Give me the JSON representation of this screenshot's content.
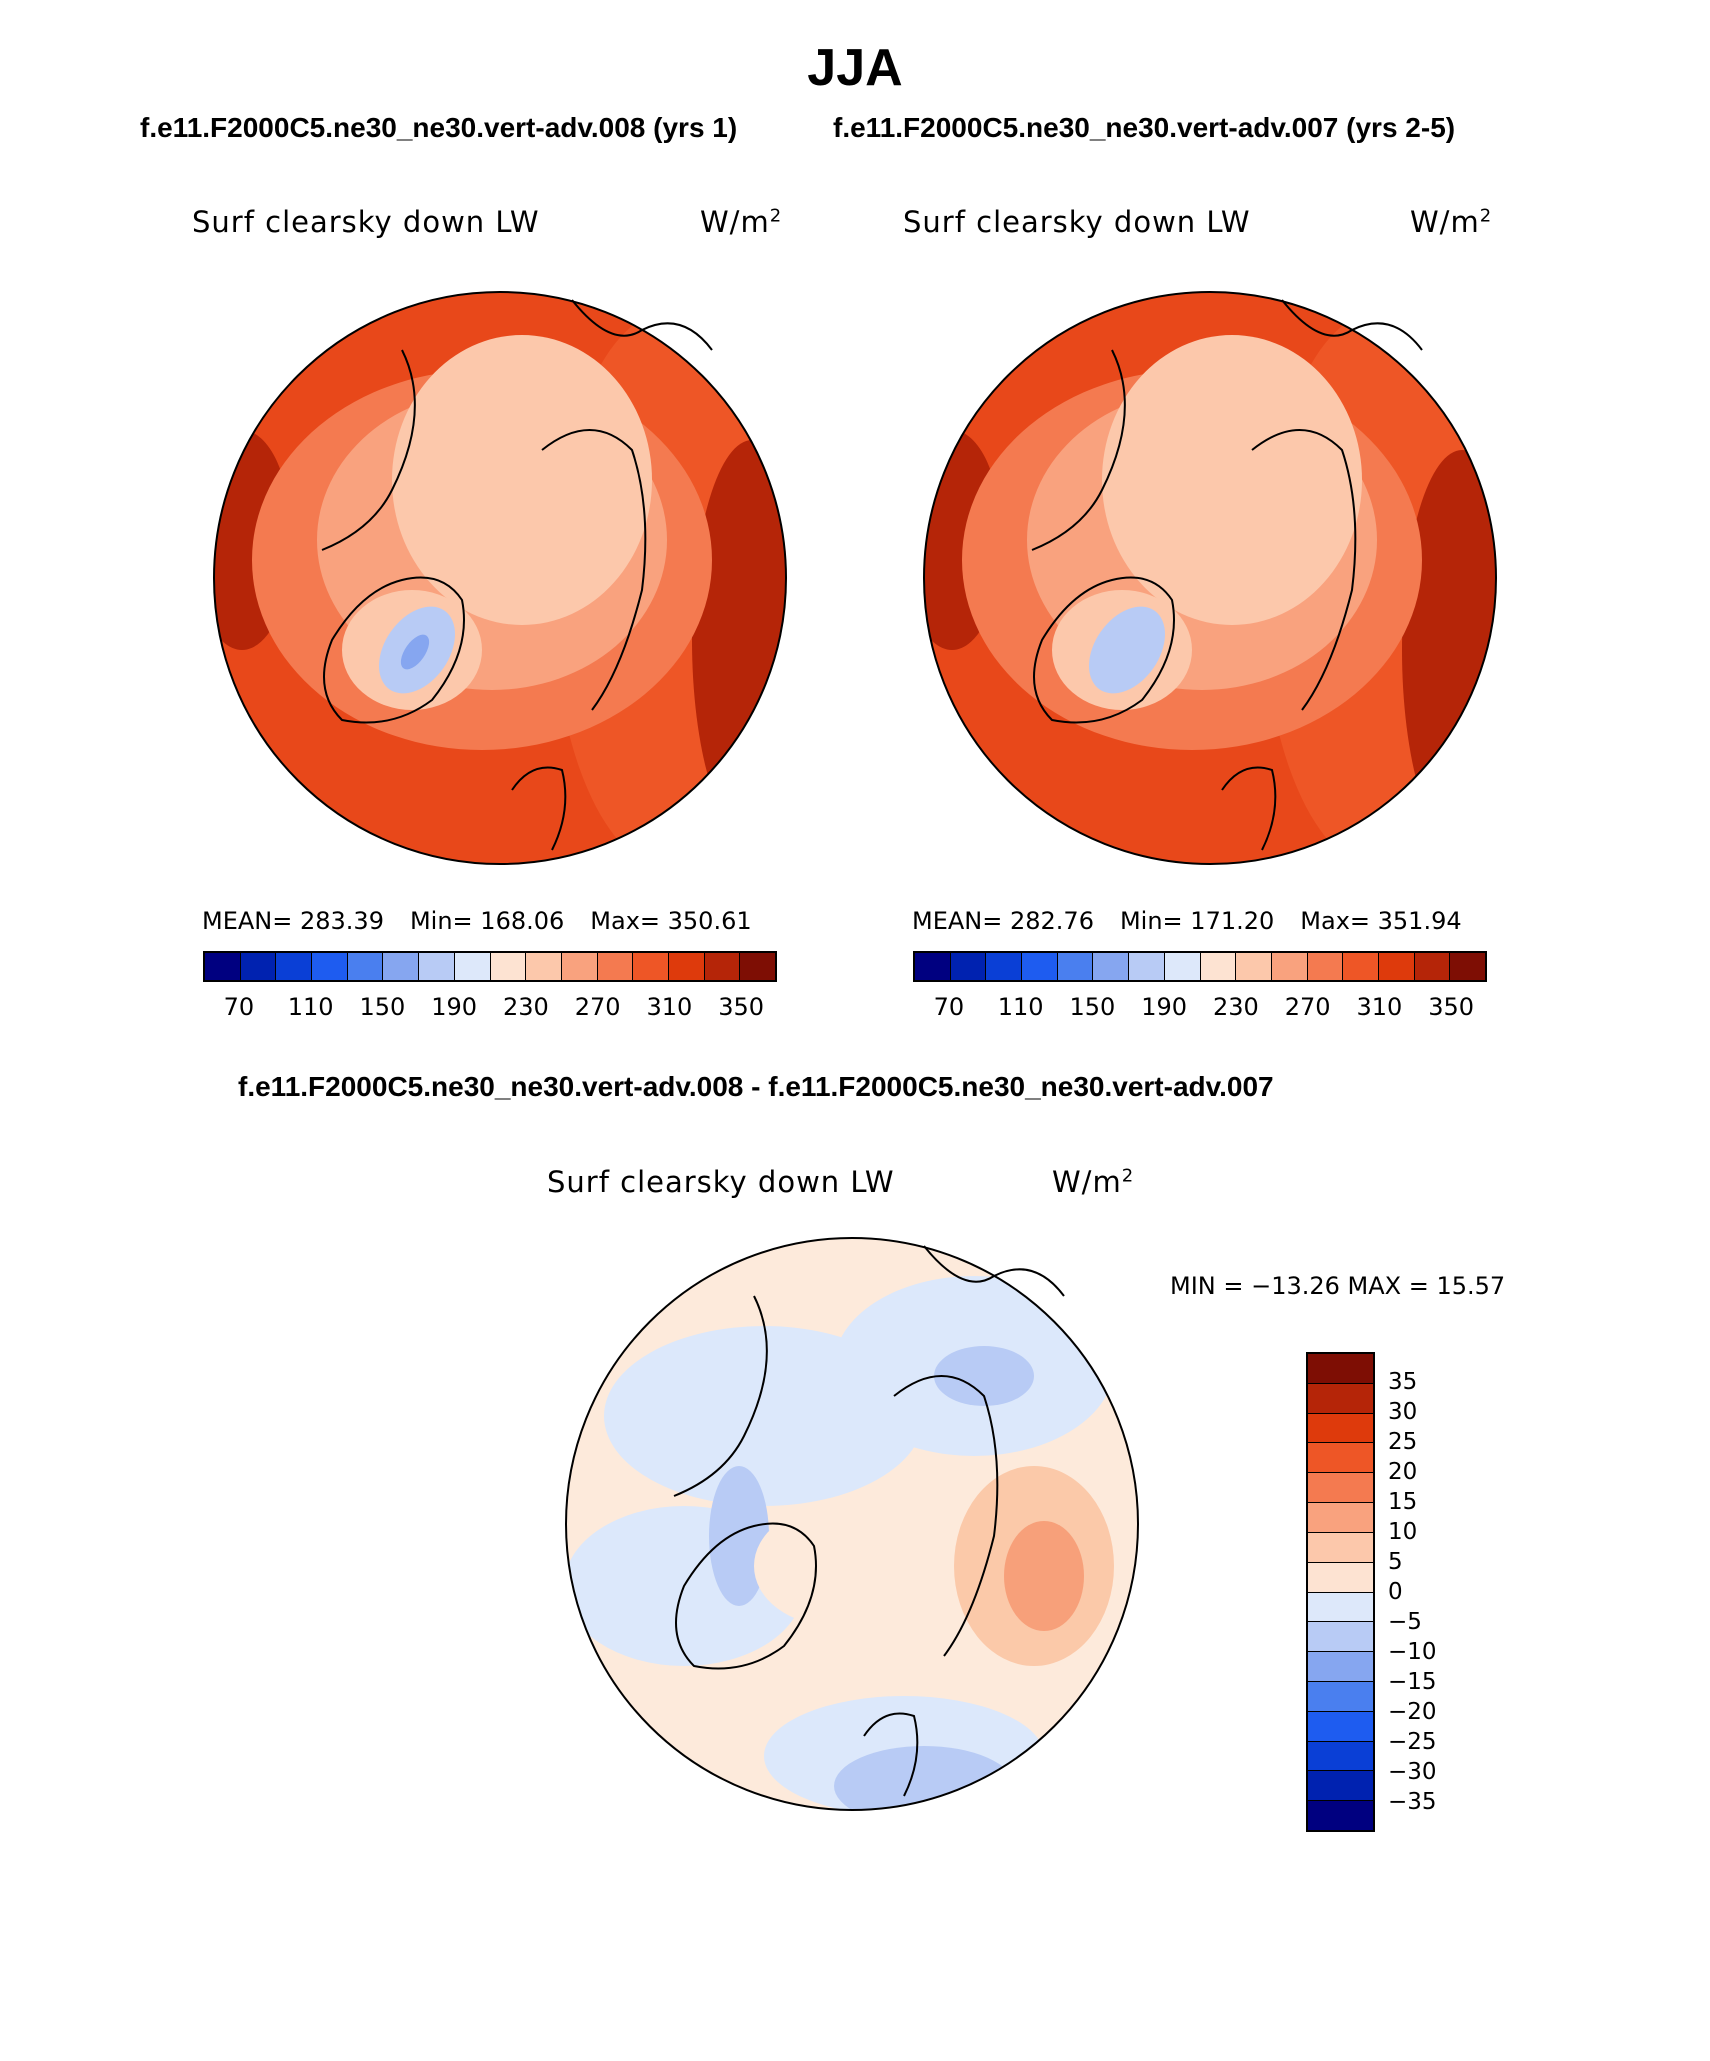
{
  "season": "JJA",
  "header": {
    "case_left": "f.e11.F2000C5.ne30_ne30.vert-adv.008 (yrs 1)",
    "case_right": "f.e11.F2000C5.ne30_ne30.vert-adv.007 (yrs 2-5)",
    "diff_title": "f.e11.F2000C5.ne30_ne30.vert-adv.008 - f.e11.F2000C5.ne30_ne30.vert-adv.007"
  },
  "panels": [
    {
      "variable": "Surf clearsky down LW",
      "units": "W/m",
      "units_exp": "2",
      "stats": {
        "mean": "MEAN= 283.39",
        "min": "Min= 168.06",
        "max": "Max= 350.61"
      },
      "colorbar_ticks": [
        "70",
        "110",
        "150",
        "190",
        "230",
        "270",
        "310",
        "350"
      ]
    },
    {
      "variable": "Surf clearsky down LW",
      "units": "W/m",
      "units_exp": "2",
      "stats": {
        "mean": "MEAN= 282.76",
        "min": "Min= 171.20",
        "max": "Max= 351.94"
      },
      "colorbar_ticks": [
        "70",
        "110",
        "150",
        "190",
        "230",
        "270",
        "310",
        "350"
      ]
    }
  ],
  "diff_panel": {
    "variable": "Surf clearsky down LW",
    "units": "W/m",
    "units_exp": "2",
    "minmax": "MIN = −13.26 MAX =   15.57",
    "colorbar_ticks": [
      "35",
      "30",
      "25",
      "20",
      "15",
      "10",
      "5",
      "0",
      "−5",
      "−10",
      "−15",
      "−20",
      "−25",
      "−30",
      "−35"
    ]
  },
  "colors": {
    "scale": [
      "#000080",
      "#0022b0",
      "#0a3fd6",
      "#1e5cf0",
      "#4a7fef",
      "#86a6f0",
      "#b8cbf5",
      "#dde8fa",
      "#fde3d2",
      "#fcc8ab",
      "#f9a27e",
      "#f47a50",
      "#ee5626",
      "#de3a0c",
      "#b52508",
      "#7e0e04"
    ],
    "ocean_base": "#e8481a",
    "ice_core": "#fcc3a6",
    "greenland": "#b8cbf5",
    "diff_base": "#fdeadb",
    "diff_neg": "#dce8fb",
    "diff_neg2": "#b8cbf5",
    "diff_pos": "#fbc9a9",
    "diff_pos2": "#f7a07a"
  },
  "chart_data": {
    "type": "heatmap",
    "projection": "north-polar-stereographic",
    "maps": [
      {
        "name": "vert-adv.008 (yrs 1)",
        "mean": 283.39,
        "min": 168.06,
        "max": 350.61,
        "range": [
          50,
          370
        ],
        "interval": 20
      },
      {
        "name": "vert-adv.007 (yrs 2-5)",
        "mean": 282.76,
        "min": 171.2,
        "max": 351.94,
        "range": [
          50,
          370
        ],
        "interval": 20
      },
      {
        "name": "difference",
        "min": -13.26,
        "max": 15.57,
        "levels": [
          -35,
          -30,
          -25,
          -20,
          -15,
          -10,
          -5,
          0,
          5,
          10,
          15,
          20,
          25,
          30,
          35
        ]
      }
    ]
  }
}
